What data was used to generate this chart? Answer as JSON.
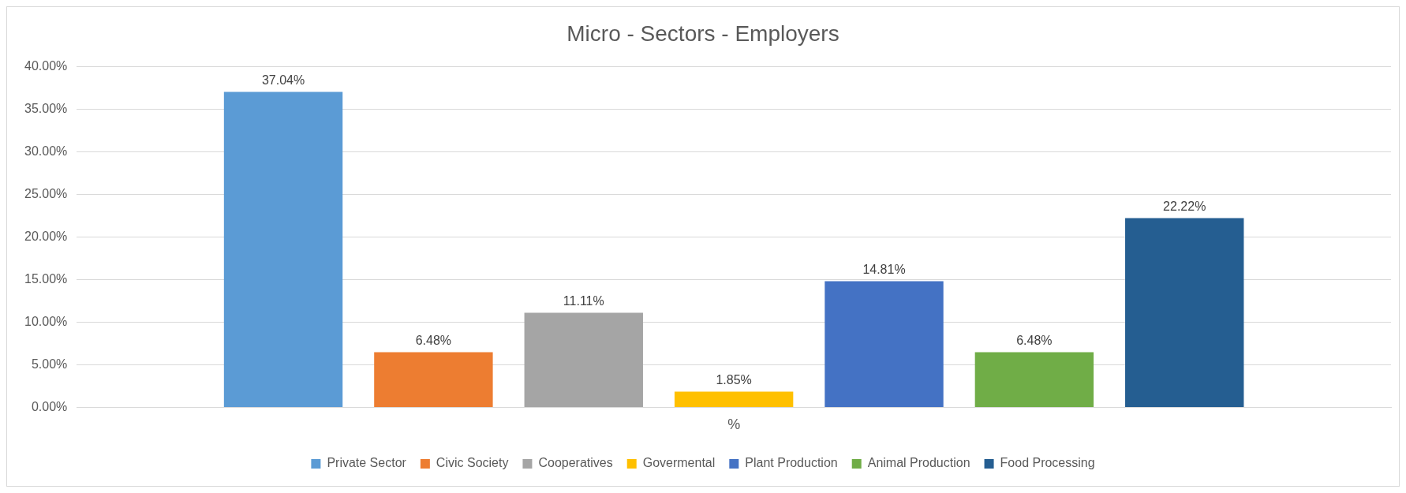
{
  "chart_data": {
    "type": "bar",
    "title": "Micro - Sectors - Employers",
    "categories": [
      "%"
    ],
    "series": [
      {
        "name": "Private Sector",
        "color": "#5b9bd5",
        "values": [
          37.04
        ],
        "value_labels": [
          "37.04%"
        ]
      },
      {
        "name": "Civic Society",
        "color": "#ed7d31",
        "values": [
          6.48
        ],
        "value_labels": [
          "6.48%"
        ]
      },
      {
        "name": "Cooperatives",
        "color": "#a5a5a5",
        "values": [
          11.11
        ],
        "value_labels": [
          "11.11%"
        ]
      },
      {
        "name": "Govermental",
        "color": "#ffc000",
        "values": [
          1.85
        ],
        "value_labels": [
          "1.85%"
        ]
      },
      {
        "name": "Plant Production",
        "color": "#4472c4",
        "values": [
          14.81
        ],
        "value_labels": [
          "14.81%"
        ]
      },
      {
        "name": "Animal Production",
        "color": "#70ad47",
        "values": [
          6.48
        ],
        "value_labels": [
          "6.48%"
        ]
      },
      {
        "name": "Food Processing",
        "color": "#255e91",
        "values": [
          22.22
        ],
        "value_labels": [
          "22.22%"
        ]
      }
    ],
    "ylim": [
      0,
      40
    ],
    "yticks": [
      {
        "value": 0,
        "label": "0.00%"
      },
      {
        "value": 5,
        "label": "5.00%"
      },
      {
        "value": 10,
        "label": "10.00%"
      },
      {
        "value": 15,
        "label": "15.00%"
      },
      {
        "value": 20,
        "label": "20.00%"
      },
      {
        "value": 25,
        "label": "25.00%"
      },
      {
        "value": 30,
        "label": "30.00%"
      },
      {
        "value": 35,
        "label": "35.00%"
      },
      {
        "value": 40,
        "label": "40.00%"
      }
    ],
    "grid": "y",
    "legend": "bottom"
  }
}
